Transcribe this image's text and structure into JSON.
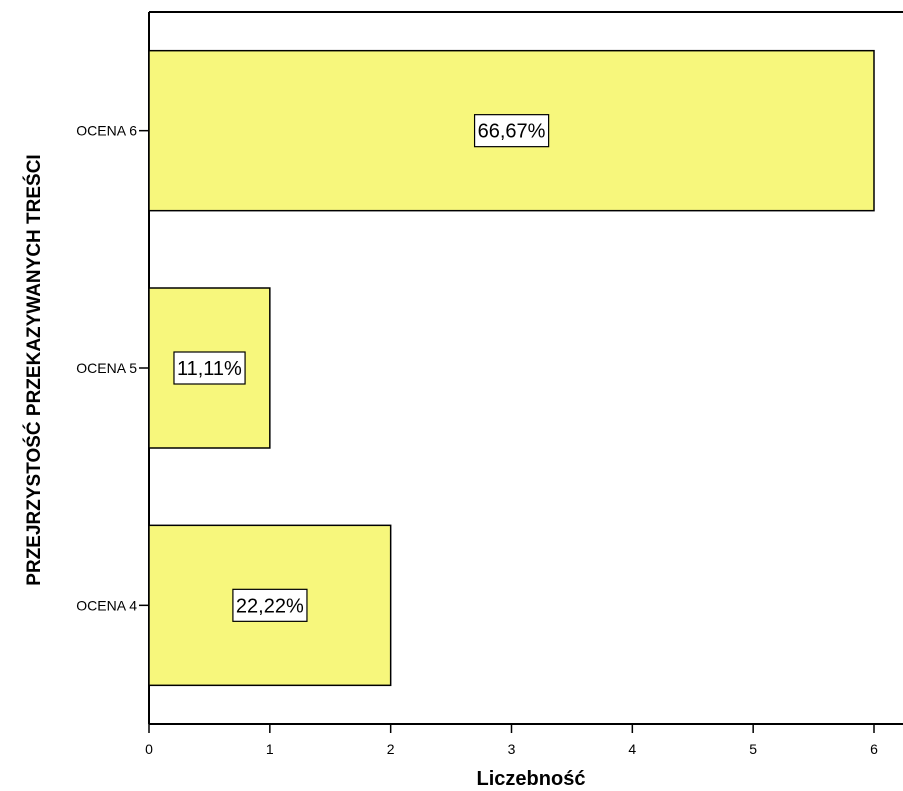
{
  "chart_data": {
    "type": "bar",
    "orientation": "horizontal",
    "categories": [
      "OCENA 6",
      "OCENA 5",
      "OCENA 4"
    ],
    "values": [
      6,
      1,
      2
    ],
    "data_labels": [
      "66,67%",
      "11,11%",
      "22,22%"
    ],
    "xlabel": "Liczebność",
    "ylabel": "PRZEJRZYSTOŚĆ PRZEKAZYWANYCH TREŚCI",
    "xlim": [
      0,
      6
    ],
    "xticks": [
      0,
      1,
      2,
      3,
      4,
      5,
      6
    ],
    "grid": false,
    "bar_color": "#f7f77c"
  }
}
